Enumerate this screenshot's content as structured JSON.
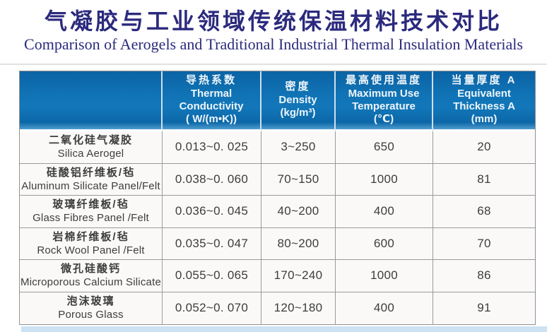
{
  "title": {
    "zh": "气凝胶与工业领域传统保温材料技术对比",
    "en": "Comparison of Aerogels and Traditional Industrial Thermal Insulation Materials"
  },
  "colors": {
    "header_blue": "#1277b9",
    "header_blue_dark": "#0b63a4",
    "title_navy": "#2b2a7d",
    "bottom_band_blue": "#cde2f2",
    "border_gray": "#9a9a9a"
  },
  "table": {
    "columns": [
      {
        "zh": "",
        "en": "",
        "unit": ""
      },
      {
        "zh": "导热系数",
        "en": "Thermal Conductivity",
        "unit": "( W/(m•K))"
      },
      {
        "zh": "密度",
        "en": "Density",
        "unit": "(kg/m³)"
      },
      {
        "zh": "最高使用温度",
        "en": "Maximum Use Temperature",
        "unit": "(℃)"
      },
      {
        "zh": "当量厚度 A",
        "en": "Equivalent Thickness A",
        "unit": "(mm)"
      }
    ],
    "rows": [
      {
        "zh": "二氧化硅气凝胶",
        "en": "Silica Aerogel",
        "conductivity": "0.013~0. 025",
        "density": "3~250",
        "max_temp": "650",
        "thickness": "20"
      },
      {
        "zh": "硅酸铝纤维板/毡",
        "en": "Aluminum Silicate Panel/Felt",
        "conductivity": "0.038~0. 060",
        "density": "70~150",
        "max_temp": "1000",
        "thickness": "81"
      },
      {
        "zh": "玻璃纤维板/毡",
        "en": "Glass Fibres Panel /Felt",
        "conductivity": "0.036~0. 045",
        "density": "40~200",
        "max_temp": "400",
        "thickness": "68"
      },
      {
        "zh": "岩棉纤维板/毡",
        "en": "Rock Wool Panel /Felt",
        "conductivity": "0.035~0. 047",
        "density": "80~200",
        "max_temp": "600",
        "thickness": "70"
      },
      {
        "zh": "微孔硅酸钙",
        "en": "Microporous Calcium Silicate",
        "conductivity": "0.055~0. 065",
        "density": "170~240",
        "max_temp": "1000",
        "thickness": "86"
      },
      {
        "zh": "泡沫玻璃",
        "en": "Porous Glass",
        "conductivity": "0.052~0. 070",
        "density": "120~180",
        "max_temp": "400",
        "thickness": "91"
      }
    ]
  },
  "chart_data": {
    "type": "table",
    "title": "气凝胶与工业领域传统保温材料技术对比",
    "subtitle": "Comparison of Aerogels and Traditional Industrial Thermal Insulation Materials",
    "categories": [
      "Silica Aerogel",
      "Aluminum Silicate Panel/Felt",
      "Glass Fibres Panel/Felt",
      "Rock Wool Panel/Felt",
      "Microporous Calcium Silicate",
      "Porous Glass"
    ],
    "series": [
      {
        "name": "Thermal Conductivity (W/(m·K))",
        "values": [
          "0.013~0.025",
          "0.038~0.060",
          "0.036~0.045",
          "0.035~0.047",
          "0.055~0.065",
          "0.052~0.070"
        ]
      },
      {
        "name": "Density (kg/m³)",
        "values": [
          "3~250",
          "70~150",
          "40~200",
          "80~200",
          "170~240",
          "120~180"
        ]
      },
      {
        "name": "Maximum Use Temperature (°C)",
        "values": [
          650,
          1000,
          400,
          600,
          1000,
          400
        ]
      },
      {
        "name": "Equivalent Thickness A (mm)",
        "values": [
          20,
          81,
          68,
          70,
          86,
          91
        ]
      }
    ],
    "legend_position": "none",
    "grid": true
  }
}
